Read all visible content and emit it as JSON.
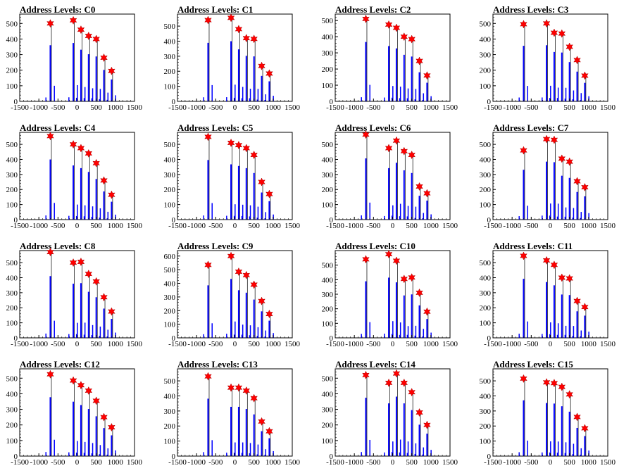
{
  "colors": {
    "bar": "#0000ff",
    "marker": "#ff0000",
    "line": "#000000"
  },
  "chart_data": [
    {
      "type": "bar",
      "title": "Address Levels: C0",
      "xlim": [
        -1500,
        1500
      ],
      "ylim": [
        0,
        560
      ],
      "xticks": [
        "-1500",
        "-1000",
        "-500",
        "0",
        "500",
        "1000",
        "1500"
      ],
      "yticks": [
        "0",
        "100",
        "200",
        "300",
        "400",
        "500"
      ],
      "peak_x": [
        -700,
        -100,
        100,
        300,
        500,
        700,
        900
      ],
      "peak_y": [
        500,
        520,
        460,
        420,
        400,
        280,
        195
      ],
      "peak_labels": []
    },
    {
      "type": "bar",
      "title": "Address Levels: C1",
      "xlim": [
        -1500,
        1500
      ],
      "ylim": [
        0,
        580
      ],
      "xticks": [
        "-1500",
        "-1000",
        "-500",
        "0",
        "500",
        "1000",
        "1500"
      ],
      "yticks": [
        "0",
        "100",
        "200",
        "300",
        "400",
        "500"
      ],
      "peak_x": [
        -700,
        -100,
        100,
        300,
        500,
        700,
        900
      ],
      "peak_y": [
        540,
        555,
        480,
        420,
        415,
        235,
        185
      ],
      "peak_labels": []
    },
    {
      "type": "bar",
      "title": "Address Levels: C2",
      "xlim": [
        -1500,
        1500
      ],
      "ylim": [
        0,
        540
      ],
      "xticks": [
        "-1500",
        "-1000",
        "-500",
        "0",
        "500",
        "1000",
        "1500"
      ],
      "yticks": [
        "0",
        "100",
        "200",
        "300",
        "400",
        "500"
      ],
      "peak_x": [
        -700,
        -100,
        100,
        300,
        500,
        700,
        900
      ],
      "peak_y": [
        510,
        475,
        455,
        400,
        385,
        250,
        160
      ],
      "peak_labels": []
    },
    {
      "type": "bar",
      "title": "Address Levels: C3",
      "xlim": [
        -1500,
        1500
      ],
      "ylim": [
        0,
        560
      ],
      "xticks": [
        "-1500",
        "-1000",
        "-500",
        "0",
        "500",
        "1000",
        "1500"
      ],
      "yticks": [
        "0",
        "100",
        "200",
        "300",
        "400",
        "500"
      ],
      "peak_x": [
        -700,
        -100,
        100,
        300,
        500,
        700,
        900
      ],
      "peak_y": [
        495,
        500,
        440,
        435,
        350,
        265,
        165
      ],
      "peak_labels": []
    },
    {
      "type": "bar",
      "title": "Address Levels: C4",
      "xlim": [
        -1500,
        1500
      ],
      "ylim": [
        0,
        580
      ],
      "xticks": [
        "-1500",
        "-1000",
        "-500",
        "0",
        "500",
        "1000",
        "1500"
      ],
      "yticks": [
        "0",
        "100",
        "200",
        "300",
        "400",
        "500"
      ],
      "peak_x": [
        -700,
        -100,
        100,
        300,
        500,
        700,
        900
      ],
      "peak_y": [
        555,
        500,
        475,
        440,
        375,
        260,
        165
      ],
      "peak_labels": []
    },
    {
      "type": "bar",
      "title": "Address Levels: C5",
      "xlim": [
        -1500,
        1500
      ],
      "ylim": [
        0,
        580
      ],
      "xticks": [
        "-1500",
        "-1000",
        "-500",
        "0",
        "500",
        "1000",
        "1500"
      ],
      "yticks": [
        "0",
        "100",
        "200",
        "300",
        "400",
        "500"
      ],
      "peak_x": [
        -700,
        -100,
        100,
        300,
        500,
        700,
        900
      ],
      "peak_y": [
        550,
        510,
        495,
        475,
        430,
        250,
        170
      ],
      "peak_labels": []
    },
    {
      "type": "bar",
      "title": "Address Levels: C6",
      "xlim": [
        -1500,
        1500
      ],
      "ylim": [
        0,
        580
      ],
      "xticks": [
        "-1500",
        "-1000",
        "-500",
        "0",
        "500",
        "1000",
        "1500"
      ],
      "yticks": [
        "0",
        "100",
        "200",
        "300",
        "400",
        "500"
      ],
      "peak_x": [
        -700,
        -100,
        100,
        300,
        500,
        700,
        900
      ],
      "peak_y": [
        565,
        475,
        525,
        455,
        430,
        220,
        175
      ],
      "peak_labels": []
    },
    {
      "type": "bar",
      "title": "Address Levels: C7",
      "xlim": [
        -1500,
        1500
      ],
      "ylim": [
        0,
        580
      ],
      "xticks": [
        "-1500",
        "-1000",
        "-500",
        "0",
        "500",
        "1000",
        "1500"
      ],
      "yticks": [
        "0",
        "100",
        "200",
        "300",
        "400",
        "500"
      ],
      "peak_x": [
        -700,
        -100,
        100,
        300,
        500,
        700,
        900
      ],
      "peak_y": [
        460,
        535,
        530,
        405,
        385,
        255,
        215
      ],
      "peak_labels": []
    },
    {
      "type": "bar",
      "title": "Address Levels: C8",
      "xlim": [
        -1500,
        1500
      ],
      "ylim": [
        0,
        580
      ],
      "xticks": [
        "-1500",
        "-1000",
        "-500",
        "0",
        "500",
        "1000",
        "1500"
      ],
      "yticks": [
        "0",
        "100",
        "200",
        "300",
        "400",
        "500"
      ],
      "peak_x": [
        -700,
        -100,
        100,
        300,
        500,
        700,
        900
      ],
      "peak_y": [
        570,
        500,
        505,
        425,
        375,
        270,
        175
      ],
      "peak_labels": []
    },
    {
      "type": "bar",
      "title": "Address Levels: C9",
      "xlim": [
        -1500,
        1500
      ],
      "ylim": [
        0,
        640
      ],
      "xticks": [
        "-1500",
        "-1000",
        "-500",
        "0",
        "500",
        "1000",
        "1500"
      ],
      "yticks": [
        "0",
        "100",
        "200",
        "300",
        "400",
        "500",
        "600"
      ],
      "peak_x": [
        -700,
        -100,
        100,
        300,
        500,
        700,
        900
      ],
      "peak_y": [
        535,
        600,
        485,
        460,
        390,
        270,
        175
      ],
      "peak_labels": []
    },
    {
      "type": "bar",
      "title": "Address Levels: C10",
      "xlim": [
        -1500,
        1500
      ],
      "ylim": [
        0,
        600
      ],
      "xticks": [
        "-1500",
        "-1000",
        "-500",
        "0",
        "500",
        "1000",
        "1500"
      ],
      "yticks": [
        "0",
        "100",
        "200",
        "300",
        "400",
        "500"
      ],
      "peak_x": [
        -700,
        -100,
        100,
        300,
        500,
        700,
        900
      ],
      "peak_y": [
        540,
        575,
        530,
        405,
        415,
        310,
        180
      ],
      "peak_labels": []
    },
    {
      "type": "bar",
      "title": "Address Levels: C11",
      "xlim": [
        -1500,
        1500
      ],
      "ylim": [
        0,
        580
      ],
      "xticks": [
        "-1500",
        "-1000",
        "-500",
        "0",
        "500",
        "1000",
        "1500"
      ],
      "yticks": [
        "0",
        "100",
        "200",
        "300",
        "400",
        "500"
      ],
      "peak_x": [
        -700,
        -100,
        100,
        300,
        500,
        700,
        900
      ],
      "peak_y": [
        545,
        515,
        485,
        400,
        395,
        245,
        205
      ],
      "peak_labels": []
    },
    {
      "type": "bar",
      "title": "Address Levels: C12",
      "xlim": [
        -1500,
        1500
      ],
      "ylim": [
        0,
        560
      ],
      "xticks": [
        "-1500",
        "-1000",
        "-500",
        "0",
        "500",
        "1000",
        "1500"
      ],
      "yticks": [
        "0",
        "100",
        "200",
        "300",
        "400",
        "500"
      ],
      "peak_x": [
        -700,
        -100,
        100,
        300,
        500,
        700,
        900
      ],
      "peak_y": [
        525,
        485,
        455,
        420,
        355,
        250,
        185
      ],
      "peak_labels": []
    },
    {
      "type": "bar",
      "title": "Address Levels: C13",
      "xlim": [
        -1500,
        1500
      ],
      "ylim": [
        0,
        580
      ],
      "xticks": [
        "-1500",
        "-1000",
        "-500",
        "0",
        "500",
        "1000",
        "1500"
      ],
      "yticks": [
        "0",
        "100",
        "200",
        "300",
        "400",
        "500"
      ],
      "peak_x": [
        -700,
        -100,
        100,
        300,
        500,
        700,
        900
      ],
      "peak_y": [
        530,
        455,
        455,
        435,
        385,
        230,
        165
      ],
      "peak_labels": []
    },
    {
      "type": "bar",
      "title": "Address Levels: C14",
      "xlim": [
        -1500,
        1500
      ],
      "ylim": [
        0,
        560
      ],
      "xticks": [
        "-1500",
        "-1000",
        "-500",
        "0",
        "500",
        "1000",
        "1500"
      ],
      "yticks": [
        "0",
        "100",
        "200",
        "300",
        "400",
        "500"
      ],
      "peak_x": [
        -700,
        -100,
        100,
        300,
        500,
        700,
        900
      ],
      "peak_y": [
        520,
        470,
        530,
        470,
        410,
        280,
        200
      ],
      "peak_labels": []
    },
    {
      "type": "bar",
      "title": "Address Levels: C15",
      "xlim": [
        -1500,
        1500
      ],
      "ylim": [
        0,
        580
      ],
      "xticks": [
        "-1500",
        "-1000",
        "-500",
        "0",
        "500",
        "1000",
        "1500"
      ],
      "yticks": [
        "0",
        "100",
        "200",
        "300",
        "400",
        "500"
      ],
      "peak_x": [
        -700,
        -100,
        100,
        300,
        500,
        700,
        900
      ],
      "peak_y": [
        515,
        490,
        485,
        460,
        410,
        260,
        185
      ],
      "peak_labels": []
    }
  ]
}
